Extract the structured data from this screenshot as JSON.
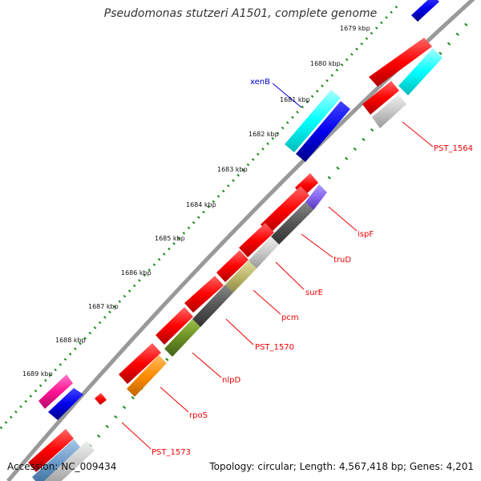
{
  "title": "Pseudomonas stutzeri A1501, complete genome",
  "footer": {
    "accession": "Accession: NC_009434",
    "summary": "Topology: circular; Length: 4,567,418 bp; Genes: 4,201"
  },
  "ticks": [
    "1679 kbp",
    "1680 kbp",
    "1681 kbp",
    "1682 kbp",
    "1683 kbp",
    "1684 kbp",
    "1685 kbp",
    "1686 kbp",
    "1687 kbp",
    "1688 kbp",
    "1689 kbp"
  ],
  "gene_labels": [
    {
      "text": "xenB",
      "color": "#0000cc"
    },
    {
      "text": "PST_1564",
      "color": "#ee0000"
    },
    {
      "text": "ispF",
      "color": "#ee0000"
    },
    {
      "text": "truD",
      "color": "#ee0000"
    },
    {
      "text": "surE",
      "color": "#ee0000"
    },
    {
      "text": "pcm",
      "color": "#ee0000"
    },
    {
      "text": "PST_1570",
      "color": "#ee0000"
    },
    {
      "text": "nlpD",
      "color": "#ee0000"
    },
    {
      "text": "rpoS",
      "color": "#ee0000"
    },
    {
      "text": "PST_1573",
      "color": "#ee0000"
    }
  ],
  "colors": {
    "backbone": "#888888",
    "gc_dots": "#1a8a1a",
    "cds_red": "#ff0000",
    "cyan": "#00ffff",
    "blue": "#0000ee",
    "purple": "#8866ee",
    "dark_gray": "#555555",
    "light_gray": "#c8c8c8",
    "olive": "#bdb76b",
    "green": "#6b8e23",
    "orange": "#ff8c00",
    "pink": "#ff1493"
  }
}
